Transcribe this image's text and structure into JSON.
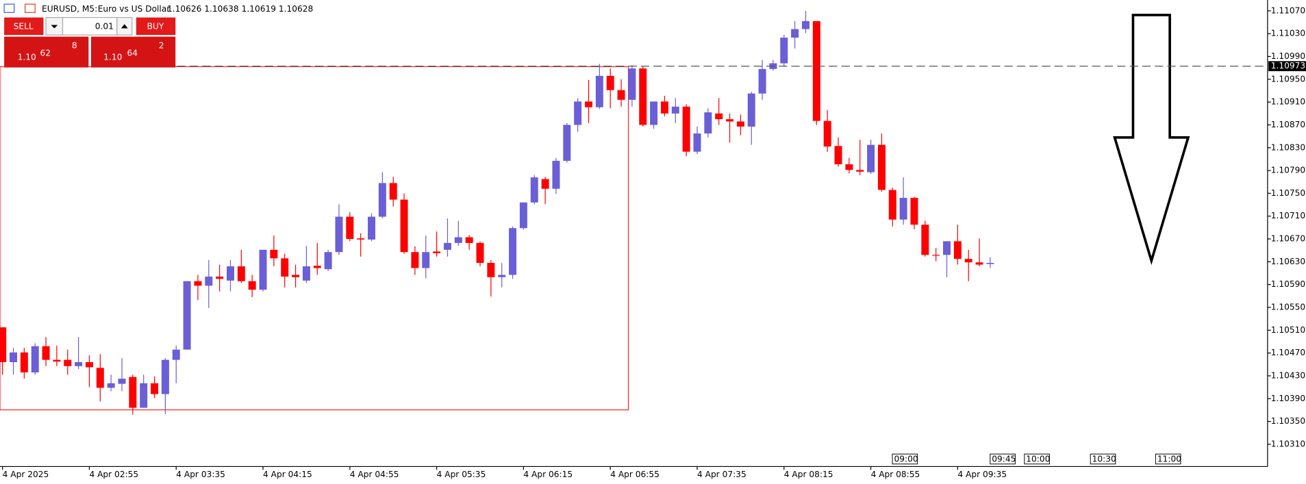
{
  "header": {
    "symbol": "EURUSD, M5:",
    "description": "Euro vs US Dollar",
    "ohlc": "1.10626 1.10638 1.10619 1.10628"
  },
  "trade_panel": {
    "sell": "SELL",
    "lot": "0.01",
    "buy": "BUY",
    "bid": {
      "prefix": "1.10",
      "main": "62",
      "small": "8"
    },
    "ask": {
      "prefix": "1.10",
      "main": "64",
      "small": "2"
    }
  },
  "chart_data": {
    "type": "candlestick",
    "up_color": "#6a5fd6",
    "down_color": "#ff0000",
    "x": [
      "4 Apr 02:15",
      "4 Apr 02:20",
      "4 Apr 02:25",
      "4 Apr 02:30",
      "4 Apr 02:35",
      "4 Apr 02:40",
      "4 Apr 02:45",
      "4 Apr 02:50",
      "4 Apr 02:55",
      "4 Apr 03:00",
      "4 Apr 03:05",
      "4 Apr 03:10",
      "4 Apr 03:15",
      "4 Apr 03:20",
      "4 Apr 03:25",
      "4 Apr 03:30",
      "4 Apr 03:35",
      "4 Apr 03:40",
      "4 Apr 03:45",
      "4 Apr 03:50",
      "4 Apr 03:55",
      "4 Apr 04:00",
      "4 Apr 04:05",
      "4 Apr 04:10",
      "4 Apr 04:15",
      "4 Apr 04:20",
      "4 Apr 04:25",
      "4 Apr 04:30",
      "4 Apr 04:35",
      "4 Apr 04:40",
      "4 Apr 04:45",
      "4 Apr 04:50",
      "4 Apr 04:55",
      "4 Apr 05:00",
      "4 Apr 05:05",
      "4 Apr 05:10",
      "4 Apr 05:15",
      "4 Apr 05:20",
      "4 Apr 05:25",
      "4 Apr 05:30",
      "4 Apr 05:35",
      "4 Apr 05:40",
      "4 Apr 05:45",
      "4 Apr 05:50",
      "4 Apr 05:55",
      "4 Apr 06:00",
      "4 Apr 06:05",
      "4 Apr 06:10",
      "4 Apr 06:15",
      "4 Apr 06:20",
      "4 Apr 06:25",
      "4 Apr 06:30",
      "4 Apr 06:35",
      "4 Apr 06:40",
      "4 Apr 06:45",
      "4 Apr 06:50",
      "4 Apr 06:55",
      "4 Apr 07:00",
      "4 Apr 07:05",
      "4 Apr 07:10",
      "4 Apr 07:15",
      "4 Apr 07:20",
      "4 Apr 07:25",
      "4 Apr 07:30",
      "4 Apr 07:35",
      "4 Apr 07:40",
      "4 Apr 07:45",
      "4 Apr 07:50",
      "4 Apr 07:55",
      "4 Apr 08:00",
      "4 Apr 08:05",
      "4 Apr 08:10",
      "4 Apr 08:15",
      "4 Apr 08:20",
      "4 Apr 08:25",
      "4 Apr 08:30",
      "4 Apr 08:35",
      "4 Apr 08:40",
      "4 Apr 08:45",
      "4 Apr 08:50",
      "4 Apr 08:55",
      "4 Apr 09:00",
      "4 Apr 09:05",
      "4 Apr 09:10",
      "4 Apr 09:15",
      "4 Apr 09:20",
      "4 Apr 09:25",
      "4 Apr 09:30",
      "4 Apr 09:35",
      "4 Apr 09:40",
      "4 Apr 09:45",
      "4 Apr 09:50"
    ],
    "open": [
      1.10515,
      1.10454,
      1.10471,
      1.10436,
      1.10482,
      1.10458,
      1.10458,
      1.10447,
      1.10454,
      1.10444,
      1.10409,
      1.10416,
      1.10428,
      1.10374,
      1.10417,
      1.10398,
      1.10458,
      1.10476,
      1.10596,
      1.10588,
      1.10604,
      1.10597,
      1.10622,
      1.10596,
      1.10581,
      1.10651,
      1.10636,
      1.10607,
      1.10597,
      1.10623,
      1.10617,
      1.10647,
      1.10709,
      1.10671,
      1.10669,
      1.10709,
      1.10768,
      1.10739,
      1.10647,
      1.10619,
      1.10648,
      1.10651,
      1.10663,
      1.10673,
      1.10663,
      1.10628,
      1.10603,
      1.10607,
      1.10689,
      1.10734,
      1.10775,
      1.10758,
      1.10807,
      1.1087,
      1.10911,
      1.10901,
      1.10956,
      1.10931,
      1.10914,
      1.10969,
      1.1087,
      1.10911,
      1.1089,
      1.10902,
      1.10823,
      1.10855,
      1.1089,
      1.1088,
      1.10876,
      1.10867,
      1.10925,
      1.10968,
      1.10978,
      1.11023,
      1.11038,
      1.11052,
      1.10877,
      1.10833,
      1.10801,
      1.10791,
      1.10787,
      1.10835,
      1.10756,
      1.10704,
      1.10742,
      1.10695,
      1.10642,
      1.10642,
      1.10666,
      1.10635,
      1.10629,
      1.10626
    ],
    "high": [
      1.10515,
      1.10479,
      1.10479,
      1.10487,
      1.10498,
      1.10483,
      1.10476,
      1.10498,
      1.10466,
      1.10468,
      1.10432,
      1.10461,
      1.10432,
      1.10432,
      1.10429,
      1.10461,
      1.10483,
      1.10596,
      1.10607,
      1.10633,
      1.10625,
      1.10633,
      1.10651,
      1.10607,
      1.10651,
      1.10676,
      1.10644,
      1.10625,
      1.10658,
      1.10663,
      1.10651,
      1.10731,
      1.10717,
      1.1068,
      1.10715,
      1.10787,
      1.10779,
      1.1075,
      1.10657,
      1.10676,
      1.10683,
      1.10706,
      1.10702,
      1.10677,
      1.10666,
      1.10633,
      1.10628,
      1.10692,
      1.10734,
      1.10782,
      1.10779,
      1.10812,
      1.10873,
      1.10917,
      1.10949,
      1.10977,
      1.10969,
      1.1095,
      1.10975,
      1.10972,
      1.10911,
      1.10921,
      1.10917,
      1.10906,
      1.10867,
      1.10899,
      1.10917,
      1.1089,
      1.10888,
      1.10928,
      1.10984,
      1.10984,
      1.11028,
      1.11052,
      1.1107,
      1.11052,
      1.10896,
      1.10848,
      1.10812,
      1.10844,
      1.10844,
      1.10855,
      1.1076,
      1.10778,
      1.10744,
      1.10702,
      1.10654,
      1.10666,
      1.10695,
      1.10651,
      1.10671,
      1.10638
    ],
    "low": [
      1.10432,
      1.10432,
      1.10425,
      1.10432,
      1.10447,
      1.10447,
      1.10432,
      1.10442,
      1.1041,
      1.10385,
      1.10403,
      1.10403,
      1.10362,
      1.10374,
      1.10391,
      1.10363,
      1.10417,
      1.10476,
      1.10563,
      1.10549,
      1.10578,
      1.10578,
      1.10593,
      1.10568,
      1.10578,
      1.10622,
      1.10585,
      1.10585,
      1.10593,
      1.10607,
      1.10614,
      1.10642,
      1.10666,
      1.10639,
      1.10666,
      1.10706,
      1.10727,
      1.10644,
      1.10607,
      1.10601,
      1.10639,
      1.10639,
      1.10658,
      1.10651,
      1.10622,
      1.10569,
      1.10585,
      1.106,
      1.10686,
      1.10731,
      1.10731,
      1.10749,
      1.10804,
      1.10858,
      1.10873,
      1.10898,
      1.10899,
      1.10902,
      1.10902,
      1.10867,
      1.10863,
      1.10885,
      1.10873,
      1.10815,
      1.10819,
      1.10848,
      1.1087,
      1.10839,
      1.10852,
      1.10835,
      1.10914,
      1.10965,
      1.10972,
      1.11004,
      1.11031,
      1.1087,
      1.10823,
      1.10797,
      1.10785,
      1.10782,
      1.10784,
      1.10753,
      1.10692,
      1.10695,
      1.10687,
      1.10639,
      1.10631,
      1.10603,
      1.10625,
      1.10596,
      1.10622,
      1.10619
    ],
    "close": [
      1.10454,
      1.10471,
      1.10436,
      1.10482,
      1.10458,
      1.10455,
      1.10447,
      1.10454,
      1.10445,
      1.10409,
      1.10417,
      1.10425,
      1.10374,
      1.10417,
      1.10398,
      1.10458,
      1.10476,
      1.10596,
      1.10588,
      1.10604,
      1.106,
      1.10622,
      1.10596,
      1.10581,
      1.10651,
      1.10636,
      1.10604,
      1.10603,
      1.10622,
      1.10619,
      1.10647,
      1.10709,
      1.1067,
      1.10669,
      1.10709,
      1.10768,
      1.10739,
      1.10647,
      1.10619,
      1.10647,
      1.10645,
      1.10663,
      1.10673,
      1.10663,
      1.10628,
      1.10603,
      1.10607,
      1.10689,
      1.10734,
      1.10778,
      1.10758,
      1.10807,
      1.1087,
      1.10911,
      1.10901,
      1.10956,
      1.10931,
      1.10914,
      1.10969,
      1.1087,
      1.10911,
      1.1089,
      1.10902,
      1.10823,
      1.10855,
      1.10892,
      1.1088,
      1.10876,
      1.10867,
      1.10925,
      1.10968,
      1.10978,
      1.11023,
      1.11038,
      1.11052,
      1.10877,
      1.10832,
      1.10801,
      1.10791,
      1.10788,
      1.10835,
      1.10756,
      1.10704,
      1.10742,
      1.10695,
      1.10642,
      1.10641,
      1.10666,
      1.10635,
      1.10629,
      1.10625,
      1.10628
    ],
    "ylim": [
      1.10271,
      1.11089
    ],
    "yticks": [
      {
        "value": 1.1107,
        "label": "1.11070"
      },
      {
        "value": 1.1103,
        "label": "1.11030"
      },
      {
        "value": 1.1099,
        "label": "1.10990"
      },
      {
        "value": 1.1095,
        "label": "1.10950"
      },
      {
        "value": 1.1091,
        "label": "1.10910"
      },
      {
        "value": 1.1087,
        "label": "1.10870"
      },
      {
        "value": 1.1083,
        "label": "1.10830"
      },
      {
        "value": 1.1079,
        "label": "1.10790"
      },
      {
        "value": 1.1075,
        "label": "1.10750"
      },
      {
        "value": 1.1071,
        "label": "1.10710"
      },
      {
        "value": 1.1067,
        "label": "1.10670"
      },
      {
        "value": 1.1063,
        "label": "1.10630"
      },
      {
        "value": 1.1059,
        "label": "1.10590"
      },
      {
        "value": 1.1055,
        "label": "1.10550"
      },
      {
        "value": 1.1051,
        "label": "1.10510"
      },
      {
        "value": 1.1047,
        "label": "1.10470"
      },
      {
        "value": 1.1043,
        "label": "1.10430"
      },
      {
        "value": 1.1039,
        "label": "1.10390"
      },
      {
        "value": 1.1035,
        "label": "1.10350"
      },
      {
        "value": 1.1031,
        "label": "1.10310"
      }
    ],
    "xticks": [
      {
        "value": "4 Apr 02:15",
        "label": "4 Apr 2025"
      },
      "4 Apr 02:55",
      "4 Apr 03:35",
      "4 Apr 04:15",
      "4 Apr 04:55",
      "4 Apr 05:35",
      "4 Apr 06:15",
      "4 Apr 06:55",
      "4 Apr 07:35",
      "4 Apr 08:15",
      "4 Apr 08:55",
      "4 Apr 09:35"
    ],
    "hline": 1.10973,
    "time_markers": [
      "09:00",
      "09:45",
      "10:00",
      "10:30",
      "11:00"
    ]
  }
}
